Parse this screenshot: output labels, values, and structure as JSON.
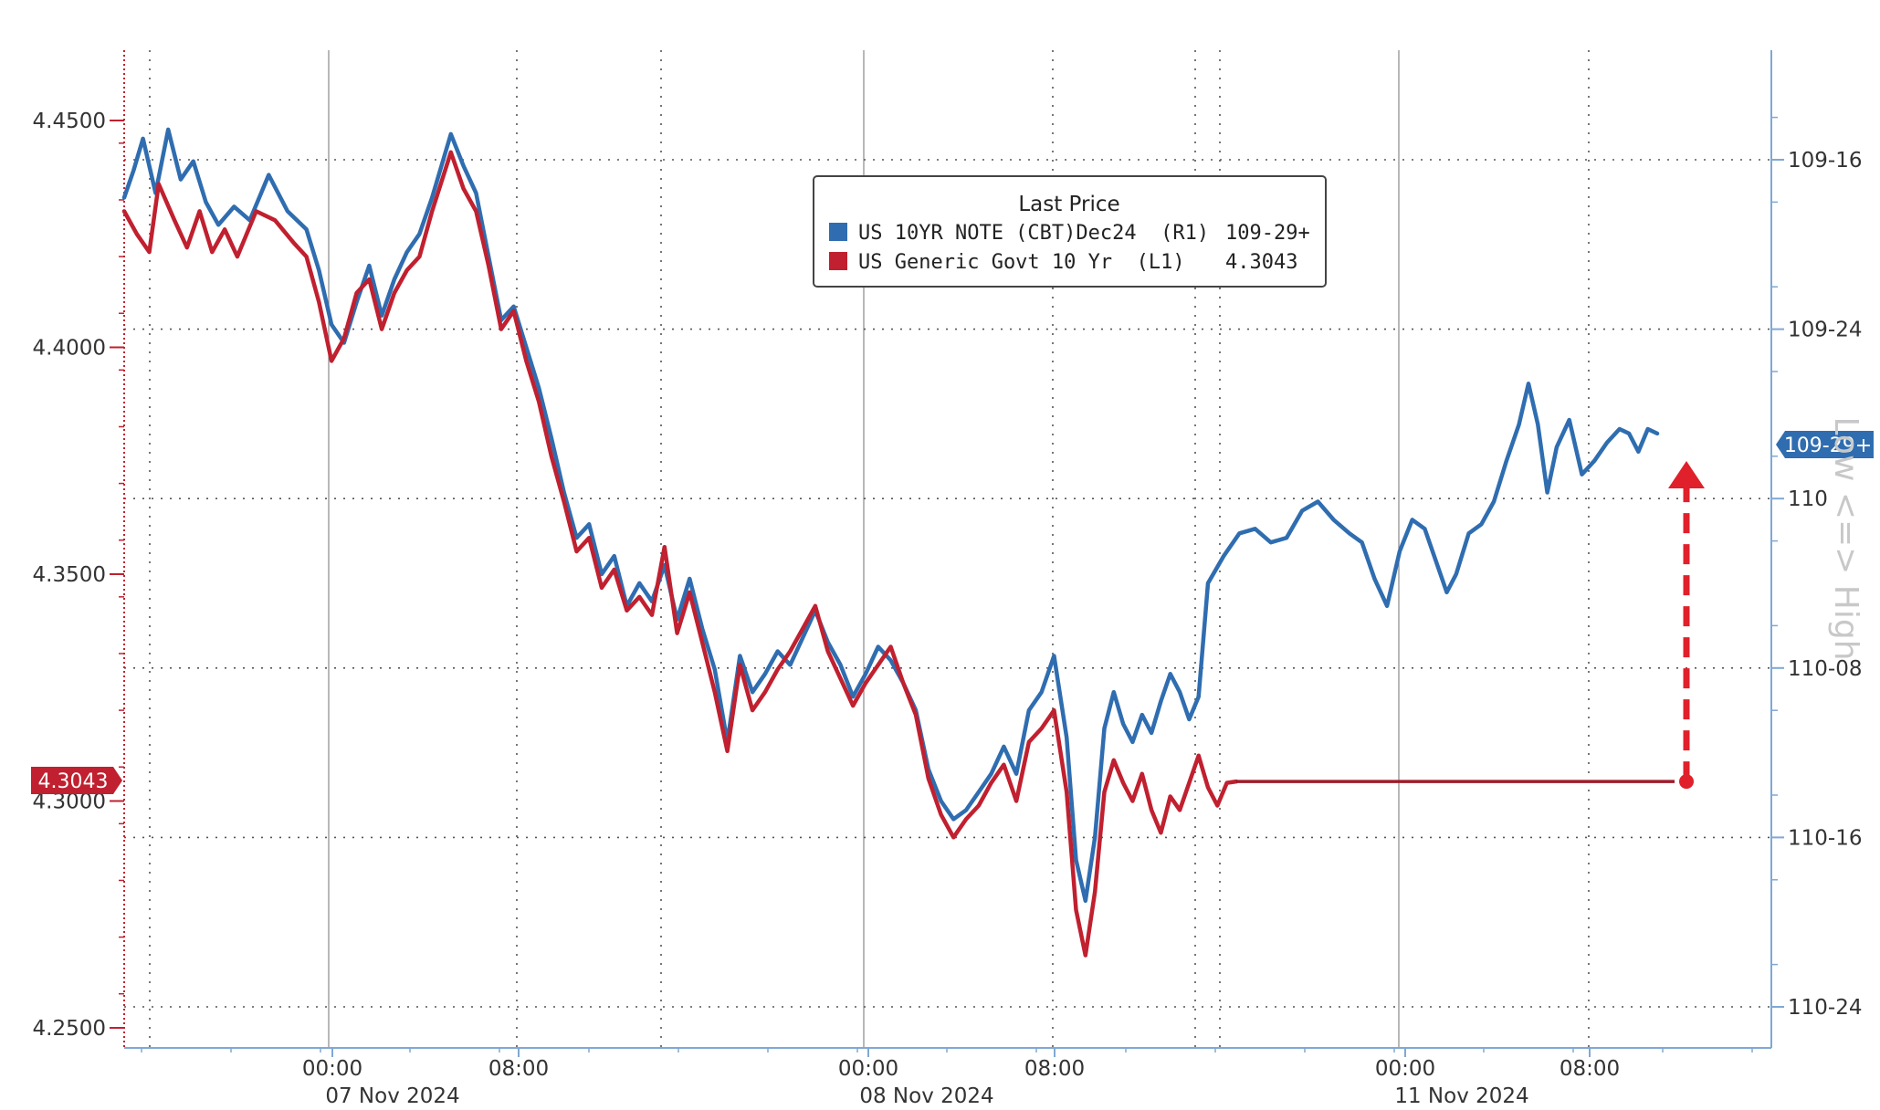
{
  "chart_data": {
    "type": "line",
    "legend": {
      "title": "Last Price",
      "placement": "top-center",
      "entries": [
        {
          "name": "US 10YR NOTE (CBT)Dec24  (R1)",
          "value": "109-29+",
          "color": "#2f6db0"
        },
        {
          "name": "US Generic Govt 10 Yr  (L1)",
          "value": "4.3043",
          "color": "#c0202f"
        }
      ]
    },
    "x_axis": {
      "time_labels": [
        "00:00",
        "08:00",
        "00:00",
        "08:00",
        "00:00",
        "08:00"
      ],
      "date_labels": [
        "07 Nov 2024",
        "08 Nov 2024",
        "11 Nov 2024"
      ]
    },
    "y_left": {
      "ticks": [
        "4.4500",
        "4.4000",
        "4.3500",
        "4.3000",
        "4.2500"
      ],
      "range": [
        4.243,
        4.462
      ],
      "last_value_label": "4.3043"
    },
    "y_right": {
      "ticks": [
        "109-16",
        "109-24",
        "110",
        "110-08",
        "110-16",
        "110-24"
      ],
      "tick_values": [
        109.5,
        109.75,
        110.0,
        110.25,
        110.5,
        110.75
      ],
      "inverted": true,
      "last_value_label": "109-29+",
      "side_label": "Low <=> High"
    },
    "series": [
      {
        "name": "US 10YR NOTE (CBT)Dec24  (R1)",
        "axis": "right",
        "color": "#2f6db0",
        "points": [
          [
            0,
            4.433
          ],
          [
            3,
            4.439
          ],
          [
            6,
            4.446
          ],
          [
            10,
            4.434
          ],
          [
            14,
            4.448
          ],
          [
            18,
            4.437
          ],
          [
            22,
            4.441
          ],
          [
            26,
            4.432
          ],
          [
            30,
            4.427
          ],
          [
            35,
            4.431
          ],
          [
            40,
            4.428
          ],
          [
            46,
            4.438
          ],
          [
            52,
            4.43
          ],
          [
            58,
            4.426
          ],
          [
            62,
            4.417
          ],
          [
            66,
            4.405
          ],
          [
            70,
            4.401
          ],
          [
            74,
            4.41
          ],
          [
            78,
            4.418
          ],
          [
            82,
            4.407
          ],
          [
            86,
            4.415
          ],
          [
            90,
            4.421
          ],
          [
            94,
            4.425
          ],
          [
            98,
            4.433
          ],
          [
            104,
            4.447
          ],
          [
            108,
            4.44
          ],
          [
            112,
            4.434
          ],
          [
            116,
            4.42
          ],
          [
            120,
            4.406
          ],
          [
            124,
            4.409
          ],
          [
            128,
            4.4
          ],
          [
            132,
            4.391
          ],
          [
            136,
            4.38
          ],
          [
            140,
            4.368
          ],
          [
            144,
            4.358
          ],
          [
            148,
            4.361
          ],
          [
            152,
            4.35
          ],
          [
            156,
            4.354
          ],
          [
            160,
            4.343
          ],
          [
            164,
            4.348
          ],
          [
            168,
            4.344
          ],
          [
            172,
            4.352
          ],
          [
            176,
            4.34
          ],
          [
            180,
            4.349
          ],
          [
            184,
            4.338
          ],
          [
            188,
            4.329
          ],
          [
            192,
            4.313
          ],
          [
            196,
            4.332
          ],
          [
            200,
            4.324
          ],
          [
            204,
            4.328
          ],
          [
            208,
            4.333
          ],
          [
            212,
            4.33
          ],
          [
            216,
            4.336
          ],
          [
            220,
            4.342
          ],
          [
            224,
            4.335
          ],
          [
            228,
            4.33
          ],
          [
            232,
            4.323
          ],
          [
            236,
            4.328
          ],
          [
            240,
            4.334
          ],
          [
            244,
            4.331
          ],
          [
            248,
            4.326
          ],
          [
            252,
            4.32
          ],
          [
            256,
            4.307
          ],
          [
            260,
            4.3
          ],
          [
            264,
            4.296
          ],
          [
            268,
            4.298
          ],
          [
            272,
            4.302
          ],
          [
            276,
            4.306
          ],
          [
            280,
            4.312
          ],
          [
            284,
            4.306
          ],
          [
            288,
            4.32
          ],
          [
            292,
            4.324
          ],
          [
            296,
            4.332
          ],
          [
            300,
            4.314
          ],
          [
            303,
            4.287
          ],
          [
            306,
            4.278
          ],
          [
            309,
            4.292
          ],
          [
            312,
            4.316
          ],
          [
            315,
            4.324
          ],
          [
            318,
            4.317
          ],
          [
            321,
            4.313
          ],
          [
            324,
            4.319
          ],
          [
            327,
            4.315
          ],
          [
            330,
            4.322
          ],
          [
            333,
            4.328
          ],
          [
            336,
            4.324
          ],
          [
            339,
            4.318
          ],
          [
            342,
            4.323
          ],
          [
            345,
            4.348
          ],
          [
            350,
            4.354
          ],
          [
            355,
            4.359
          ],
          [
            360,
            4.36
          ],
          [
            365,
            4.357
          ],
          [
            370,
            4.358
          ],
          [
            375,
            4.364
          ],
          [
            380,
            4.366
          ],
          [
            385,
            4.362
          ],
          [
            390,
            4.359
          ],
          [
            394,
            4.357
          ],
          [
            398,
            4.349
          ],
          [
            402,
            4.343
          ],
          [
            406,
            4.355
          ],
          [
            410,
            4.362
          ],
          [
            414,
            4.36
          ],
          [
            418,
            4.352
          ],
          [
            421,
            4.346
          ],
          [
            424,
            4.35
          ],
          [
            428,
            4.359
          ],
          [
            432,
            4.361
          ],
          [
            436,
            4.366
          ],
          [
            440,
            4.375
          ],
          [
            444,
            4.383
          ],
          [
            447,
            4.392
          ],
          [
            450,
            4.383
          ],
          [
            453,
            4.368
          ],
          [
            456,
            4.378
          ],
          [
            460,
            4.384
          ],
          [
            464,
            4.372
          ],
          [
            468,
            4.375
          ],
          [
            472,
            4.379
          ],
          [
            476,
            4.382
          ],
          [
            479,
            4.381
          ],
          [
            482,
            4.377
          ],
          [
            485,
            4.382
          ],
          [
            488,
            4.381
          ]
        ]
      },
      {
        "name": "US Generic Govt 10 Yr  (L1)",
        "axis": "left",
        "color": "#c0202f",
        "points": [
          [
            0,
            4.43
          ],
          [
            4,
            4.425
          ],
          [
            8,
            4.421
          ],
          [
            11,
            4.436
          ],
          [
            16,
            4.428
          ],
          [
            20,
            4.422
          ],
          [
            24,
            4.43
          ],
          [
            28,
            4.421
          ],
          [
            32,
            4.426
          ],
          [
            36,
            4.42
          ],
          [
            42,
            4.43
          ],
          [
            48,
            4.428
          ],
          [
            54,
            4.423
          ],
          [
            58,
            4.42
          ],
          [
            62,
            4.41
          ],
          [
            66,
            4.397
          ],
          [
            70,
            4.402
          ],
          [
            74,
            4.412
          ],
          [
            78,
            4.415
          ],
          [
            82,
            4.404
          ],
          [
            86,
            4.412
          ],
          [
            90,
            4.417
          ],
          [
            94,
            4.42
          ],
          [
            98,
            4.43
          ],
          [
            104,
            4.443
          ],
          [
            108,
            4.435
          ],
          [
            112,
            4.43
          ],
          [
            116,
            4.418
          ],
          [
            120,
            4.404
          ],
          [
            124,
            4.408
          ],
          [
            128,
            4.397
          ],
          [
            132,
            4.388
          ],
          [
            136,
            4.376
          ],
          [
            140,
            4.366
          ],
          [
            144,
            4.355
          ],
          [
            148,
            4.358
          ],
          [
            152,
            4.347
          ],
          [
            156,
            4.351
          ],
          [
            160,
            4.342
          ],
          [
            164,
            4.345
          ],
          [
            168,
            4.341
          ],
          [
            172,
            4.356
          ],
          [
            176,
            4.337
          ],
          [
            180,
            4.346
          ],
          [
            184,
            4.335
          ],
          [
            188,
            4.324
          ],
          [
            192,
            4.311
          ],
          [
            196,
            4.33
          ],
          [
            200,
            4.32
          ],
          [
            204,
            4.324
          ],
          [
            208,
            4.329
          ],
          [
            212,
            4.333
          ],
          [
            216,
            4.338
          ],
          [
            220,
            4.343
          ],
          [
            224,
            4.333
          ],
          [
            228,
            4.327
          ],
          [
            232,
            4.321
          ],
          [
            236,
            4.326
          ],
          [
            240,
            4.33
          ],
          [
            244,
            4.334
          ],
          [
            248,
            4.326
          ],
          [
            252,
            4.319
          ],
          [
            256,
            4.305
          ],
          [
            260,
            4.297
          ],
          [
            264,
            4.292
          ],
          [
            268,
            4.296
          ],
          [
            272,
            4.299
          ],
          [
            276,
            4.304
          ],
          [
            280,
            4.308
          ],
          [
            284,
            4.3
          ],
          [
            288,
            4.313
          ],
          [
            292,
            4.316
          ],
          [
            296,
            4.32
          ],
          [
            300,
            4.302
          ],
          [
            303,
            4.276
          ],
          [
            306,
            4.266
          ],
          [
            309,
            4.28
          ],
          [
            312,
            4.302
          ],
          [
            315,
            4.309
          ],
          [
            318,
            4.304
          ],
          [
            321,
            4.3
          ],
          [
            324,
            4.306
          ],
          [
            327,
            4.298
          ],
          [
            330,
            4.293
          ],
          [
            333,
            4.301
          ],
          [
            336,
            4.298
          ],
          [
            339,
            4.304
          ],
          [
            342,
            4.31
          ],
          [
            345,
            4.303
          ],
          [
            348,
            4.299
          ],
          [
            351,
            4.304
          ],
          [
            354,
            4.3043
          ],
          [
            497,
            4.3043
          ]
        ]
      }
    ],
    "annotations": {
      "arrow": {
        "color": "#e0202a",
        "style": "dashed",
        "direction": "up"
      },
      "right_badge_color": "#2f6db0",
      "left_badge_color": "#c0202f"
    },
    "grid": true,
    "colors": {
      "blue": "#2f6db0",
      "red": "#c0202f",
      "arrow_red": "#e0202a",
      "hline_red": "#9e1c2a",
      "axis": "#7fa8d6"
    }
  }
}
